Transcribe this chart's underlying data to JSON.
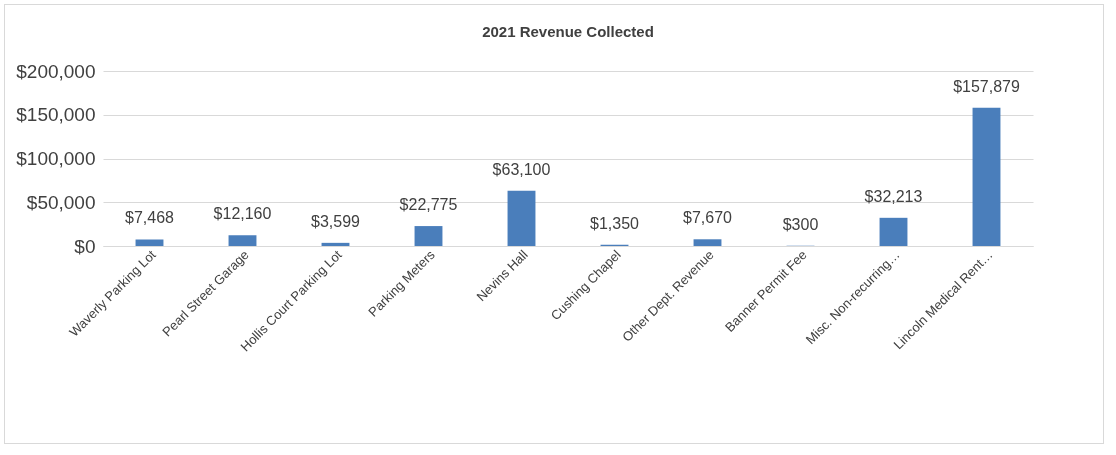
{
  "chart_data": {
    "type": "bar",
    "title": "2021 Revenue Collected",
    "categories": [
      "Waverly Parking Lot",
      "Pearl Street Garage",
      "Hollis Court Parking Lot",
      "Parking Meters",
      "Nevins Hall",
      "Cushing Chapel",
      "Other Dept. Revenue",
      "Banner Permit Fee",
      "Misc. Non-recurring…",
      "Lincoln Medical Rent…"
    ],
    "values": [
      7468,
      12160,
      3599,
      22775,
      63100,
      1350,
      7670,
      300,
      32213,
      157879
    ],
    "value_labels": [
      "$7,468",
      "$12,160",
      "$3,599",
      "$22,775",
      "$63,100",
      "$1,350",
      "$7,670",
      "$300",
      "$32,213",
      "$157,879"
    ],
    "color": "#4a7ebb",
    "ylim": [
      0,
      200000
    ],
    "yticks": [
      {
        "value": 0,
        "label": "$0"
      },
      {
        "value": 50000,
        "label": "$50,000"
      },
      {
        "value": 100000,
        "label": "$100,000"
      },
      {
        "value": 150000,
        "label": "$150,000"
      },
      {
        "value": 200000,
        "label": "$200,000"
      }
    ],
    "grid": "y"
  }
}
